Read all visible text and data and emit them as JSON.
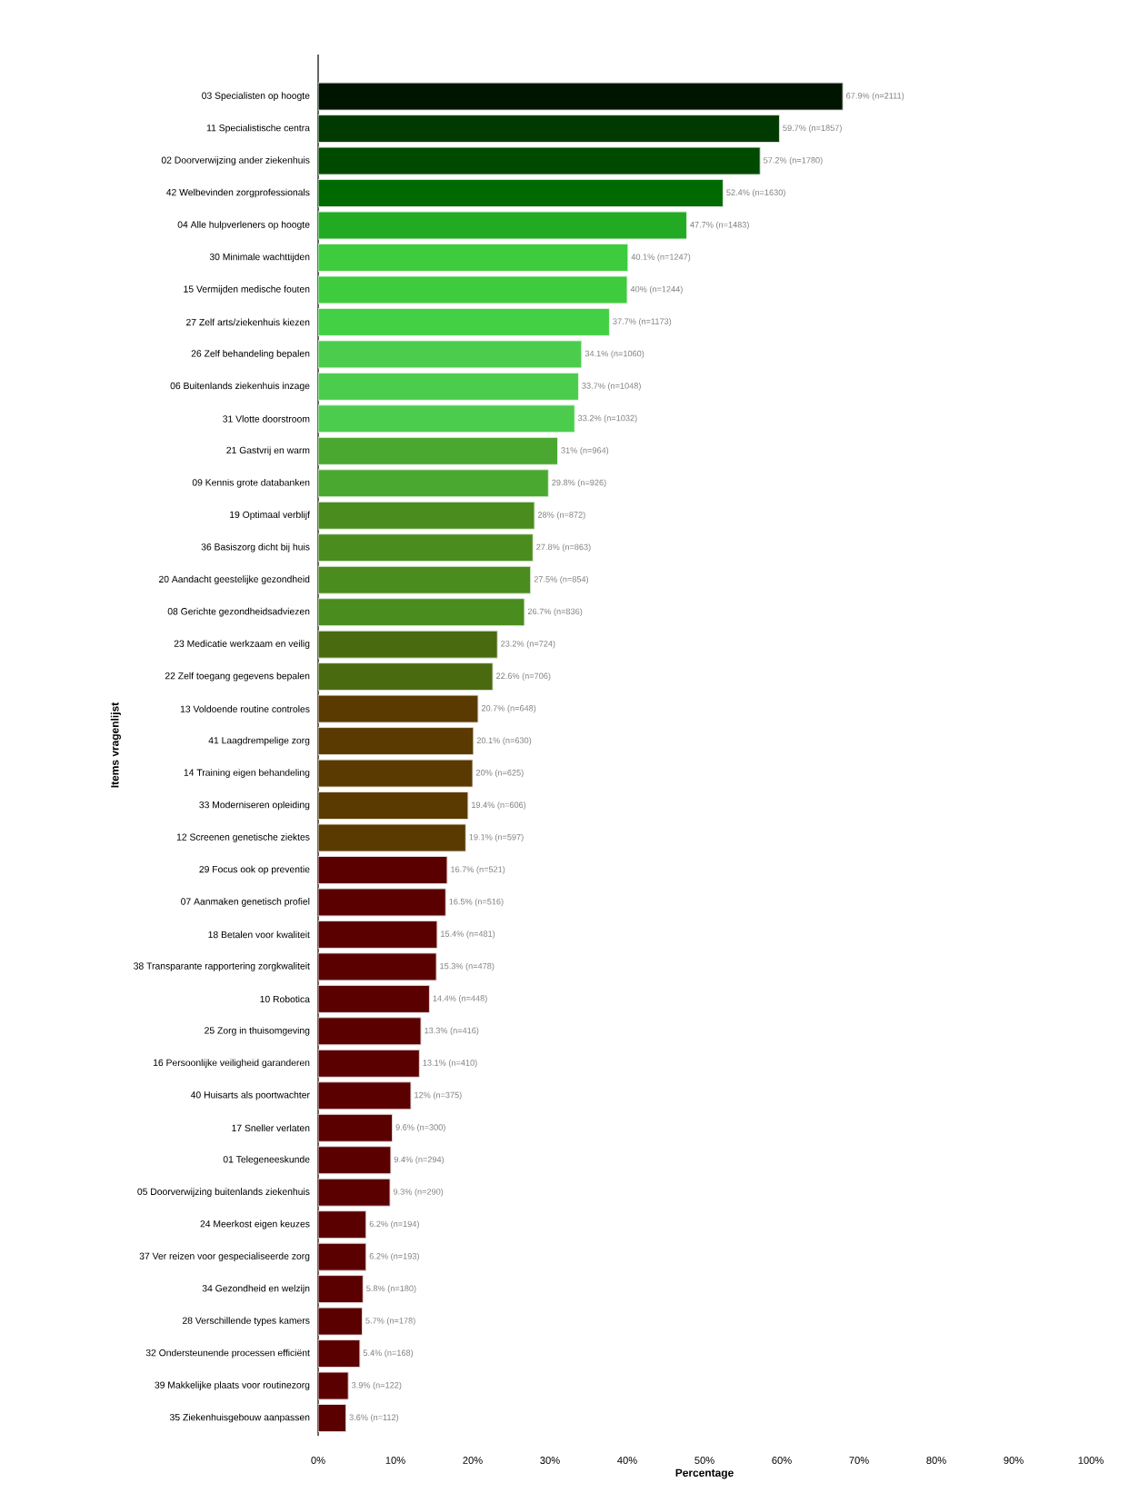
{
  "chart_data": {
    "type": "bar",
    "orientation": "horizontal",
    "xlabel": "Percentage",
    "ylabel": "Items vragenlijst",
    "categories": [
      "03 Specialisten op hoogte",
      "11 Specialistische centra",
      "02 Doorverwijzing ander ziekenhuis",
      "42 Welbevinden zorgprofessionals",
      "04 Alle hulpverleners op hoogte",
      "30 Minimale wachttijden",
      "15 Vermijden medische fouten",
      "27 Zelf arts/ziekenhuis kiezen",
      "26 Zelf behandeling bepalen",
      "06 Buitenlands ziekenhuis inzage",
      "31 Vlotte doorstroom",
      "21 Gastvrij en warm",
      "09 Kennis grote databanken",
      "19 Optimaal verblijf",
      "36 Basiszorg dicht bij huis",
      "20 Aandacht geestelijke gezondheid",
      "08 Gerichte gezondheidsadviezen",
      "23 Medicatie werkzaam en veilig",
      "22 Zelf toegang gegevens bepalen",
      "13 Voldoende routine controles",
      "41 Laagdrempelige zorg",
      "14 Training eigen behandeling",
      "33 Moderniseren opleiding",
      "12 Screenen genetische ziektes",
      "29 Focus ook op preventie",
      "07 Aanmaken genetisch profiel",
      "18 Betalen voor kwaliteit",
      "38 Transparante rapportering zorgkwaliteit",
      "10 Robotica",
      "25 Zorg in thuisomgeving",
      "16 Persoonlijke veiligheid garanderen",
      "40 Huisarts als poortwachter",
      "17 Sneller verlaten",
      "01 Telegeneeskunde",
      "05 Doorverwijzing buitenlands ziekenhuis",
      "24 Meerkost eigen keuzes",
      "37 Ver reizen voor gespecialiseerde zorg",
      "34 Gezondheid en welzijn",
      "28 Verschillende types kamers",
      "32 Ondersteunende processen efficiënt",
      "39 Makkelijke plaats voor routinezorg",
      "35 Ziekenhuisgebouw aanpassen"
    ],
    "values": [
      67.9,
      59.7,
      57.2,
      52.4,
      47.7,
      40.1,
      40,
      37.7,
      34.1,
      33.7,
      33.2,
      31,
      29.8,
      28,
      27.8,
      27.5,
      26.7,
      23.2,
      22.6,
      20.7,
      20.1,
      20,
      19.4,
      19.1,
      16.7,
      16.5,
      15.4,
      15.3,
      14.4,
      13.3,
      13.1,
      12,
      9.6,
      9.4,
      9.3,
      6.2,
      6.2,
      5.8,
      5.7,
      5.4,
      3.9,
      3.6
    ],
    "value_labels": [
      "67.9% (n=2111)",
      "59.7% (n=1857)",
      "57.2% (n=1780)",
      "52.4% (n=1630)",
      "47.7% (n=1483)",
      "40.1% (n=1247)",
      "40% (n=1244)",
      "37.7% (n=1173)",
      "34.1% (n=1060)",
      "33.7% (n=1048)",
      "33.2% (n=1032)",
      "31% (n=964)",
      "29.8% (n=926)",
      "28% (n=872)",
      "27.8% (n=863)",
      "27.5% (n=854)",
      "26.7% (n=836)",
      "23.2% (n=724)",
      "22.6% (n=706)",
      "20.7% (n=648)",
      "20.1% (n=630)",
      "20% (n=625)",
      "19.4% (n=606)",
      "19.1% (n=597)",
      "16.7% (n=521)",
      "16.5% (n=516)",
      "15.4% (n=481)",
      "15.3% (n=478)",
      "14.4% (n=448)",
      "13.3% (n=416)",
      "13.1% (n=410)",
      "12% (n=375)",
      "9.6% (n=300)",
      "9.4% (n=294)",
      "9.3% (n=290)",
      "6.2% (n=194)",
      "6.2% (n=193)",
      "5.8% (n=180)",
      "5.7% (n=178)",
      "5.4% (n=168)",
      "3.9% (n=122)",
      "3.6% (n=112)"
    ],
    "colors": [
      "#001500",
      "#003a00",
      "#004a00",
      "#006a00",
      "#22aa22",
      "#3ecb3e",
      "#3ecb3e",
      "#44d044",
      "#4ccc4c",
      "#4ccc4c",
      "#4ccc4c",
      "#4aa830",
      "#4aa830",
      "#4a8c1e",
      "#4a8c1e",
      "#4a8c1e",
      "#4a8c1e",
      "#4a6a10",
      "#4a6a10",
      "#5a3a00",
      "#5a3a00",
      "#5a3a00",
      "#5a3a00",
      "#5a3a00",
      "#5a0000",
      "#5a0000",
      "#5a0000",
      "#5a0000",
      "#5a0000",
      "#5a0000",
      "#5a0000",
      "#5a0000",
      "#5a0000",
      "#5a0000",
      "#5a0000",
      "#5a0000",
      "#5a0000",
      "#5a0000",
      "#5a0000",
      "#5a0000",
      "#5a0000",
      "#5a0000"
    ],
    "xlim": [
      0,
      100
    ],
    "xticks": [
      {
        "value": 0,
        "label": "0%"
      },
      {
        "value": 10,
        "label": "10%"
      },
      {
        "value": 20,
        "label": "20%"
      },
      {
        "value": 30,
        "label": "30%"
      },
      {
        "value": 40,
        "label": "40%"
      },
      {
        "value": 50,
        "label": "50%"
      },
      {
        "value": 60,
        "label": "60%"
      },
      {
        "value": 70,
        "label": "70%"
      },
      {
        "value": 80,
        "label": "80%"
      },
      {
        "value": 90,
        "label": "90%"
      },
      {
        "value": 100,
        "label": "100%"
      }
    ]
  }
}
